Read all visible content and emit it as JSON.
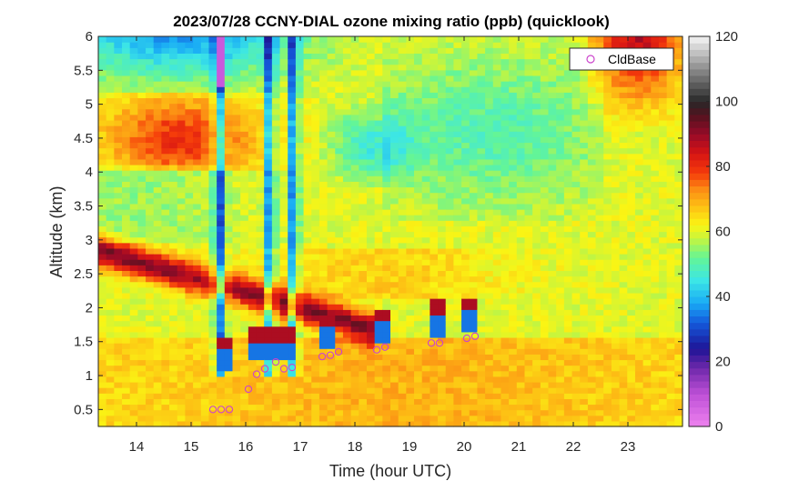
{
  "chart_data": {
    "type": "heatmap",
    "title": "2023/07/28 CCNY-DIAL ozone mixing ratio (ppb) (quicklook)",
    "xlabel": "Time (hour UTC)",
    "ylabel": "Altitude (km)",
    "xlim": [
      13.3,
      24.0
    ],
    "ylim": [
      0.25,
      6.0
    ],
    "xticks": [
      "14",
      "15",
      "16",
      "17",
      "18",
      "19",
      "20",
      "21",
      "22",
      "23"
    ],
    "yticks": [
      "0.5",
      "1",
      "1.5",
      "2",
      "2.5",
      "3",
      "3.5",
      "4",
      "4.5",
      "5",
      "5.5",
      "6"
    ],
    "colorbar": {
      "range": [
        0,
        120
      ],
      "ticks": [
        "0",
        "20",
        "40",
        "60",
        "80",
        "100",
        "120"
      ]
    },
    "legend": {
      "position": "top-right",
      "entries": [
        "CldBase"
      ]
    },
    "colors": {
      "cloud_marker": "#cc44cc"
    },
    "series": [
      {
        "name": "CldBase",
        "x": [
          15.4,
          15.55,
          15.7,
          16.05,
          16.2,
          16.35,
          16.55,
          16.7,
          16.85,
          17.4,
          17.55,
          17.7,
          18.4,
          18.55,
          19.4,
          19.55,
          20.05,
          20.2
        ],
        "y": [
          0.5,
          0.5,
          0.5,
          0.8,
          1.02,
          1.1,
          1.2,
          1.1,
          1.12,
          1.28,
          1.3,
          1.35,
          1.38,
          1.42,
          1.48,
          1.48,
          1.55,
          1.58
        ]
      }
    ]
  }
}
